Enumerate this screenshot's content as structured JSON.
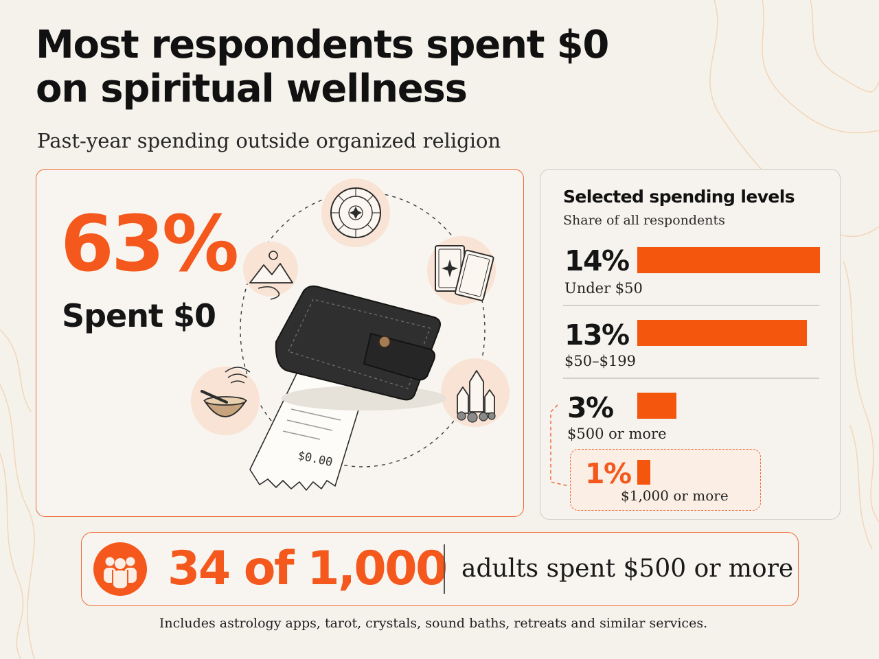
{
  "header": {
    "title_line1": "Most respondents spent $0",
    "title_line2": "on spiritual wellness",
    "subtitle": "Past-year spending outside organized religion"
  },
  "headline_stat": {
    "value": "63%",
    "label": "Spent $0",
    "receipt_amount": "$0.00"
  },
  "icons": [
    "zodiac-wheel-icon",
    "tarot-cards-icon",
    "crystals-icon",
    "singing-bowl-icon",
    "mountain-retreat-icon",
    "wallet-icon",
    "receipt-icon",
    "people-icon"
  ],
  "colors": {
    "accent": "#f4560e",
    "background": "#f5f2ec",
    "icon_circle": "#f8e3d4"
  },
  "chart_data": {
    "type": "bar",
    "orientation": "horizontal",
    "title": "Selected spending levels",
    "subtitle": "Share of all respondents",
    "unit": "%",
    "categories": [
      "Under $50",
      "$50–$199",
      "$500 or more",
      "$1,000 or more"
    ],
    "values": [
      14,
      13,
      3,
      1
    ],
    "value_labels": [
      "14%",
      "13%",
      "3%",
      "1%"
    ],
    "highlighted": "$1,000 or more",
    "xlim": [
      0,
      14
    ]
  },
  "callout": {
    "number": "34 of 1,000",
    "text": "adults spent $500 or more"
  },
  "footnote": "Includes astrology apps, tarot, crystals, sound baths, retreats and similar services."
}
